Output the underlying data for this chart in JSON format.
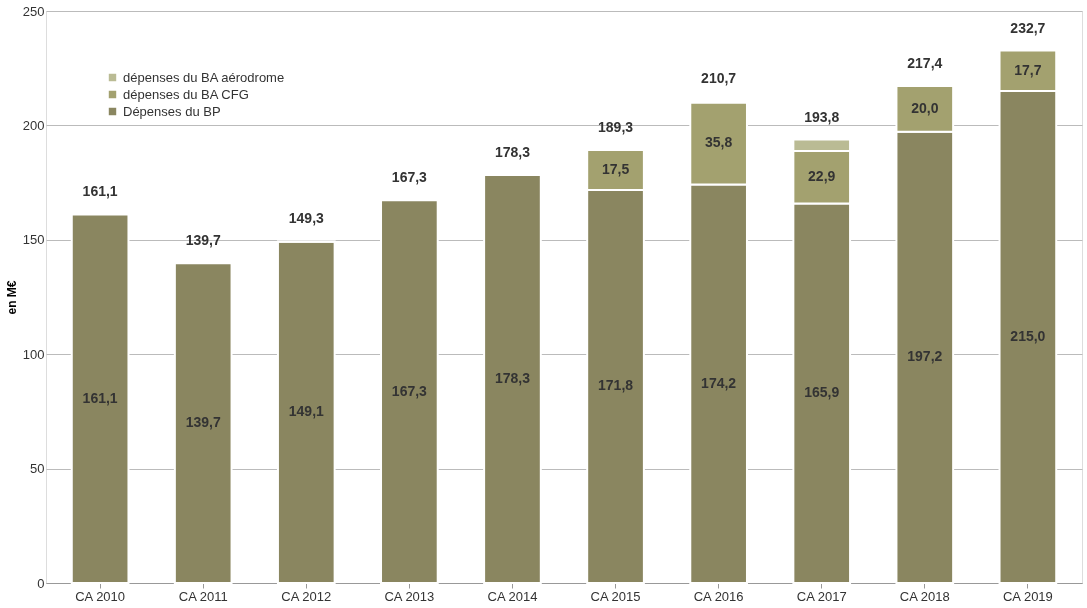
{
  "chart_data": {
    "type": "bar",
    "stacked": true,
    "ylabel": "en M€",
    "categories": [
      "CA 2010",
      "CA 2011",
      "CA 2012",
      "CA 2013",
      "CA 2014",
      "CA 2015",
      "CA 2016",
      "CA 2017",
      "CA 2018",
      "CA 2019"
    ],
    "series": [
      {
        "name": "Dépenses du BP",
        "color": "#8a8660",
        "values": [
          161.1,
          139.7,
          149.1,
          167.3,
          178.3,
          171.8,
          174.2,
          165.9,
          197.2,
          215.0
        ],
        "value_labels": [
          "161,1",
          "139,7",
          "149,1",
          "167,3",
          "178,3",
          "171,8",
          "174,2",
          "165,9",
          "197,2",
          "215,0"
        ]
      },
      {
        "name": "dépenses du BA CFG",
        "color": "#a3a16f",
        "values": [
          null,
          null,
          null,
          null,
          null,
          17.5,
          35.8,
          22.9,
          20.0,
          17.7
        ],
        "value_labels": [
          null,
          null,
          null,
          null,
          null,
          "17,5",
          "35,8",
          "22,9",
          "20,0",
          "17,7"
        ]
      },
      {
        "name": "dépenses du BA aérodrome",
        "color": "#babb94",
        "values": [
          null,
          null,
          0.2,
          null,
          null,
          null,
          0.7,
          5.0,
          0.2,
          null
        ]
      }
    ],
    "totals": [
      "161,1",
      "139,7",
      "149,3",
      "167,3",
      "178,3",
      "189,3",
      "210,7",
      "193,8",
      "217,4",
      "232,7"
    ],
    "ylim": [
      0,
      250
    ],
    "yticks": [
      0,
      50,
      100,
      150,
      200,
      250
    ],
    "grid": "y",
    "legend": "top left"
  }
}
